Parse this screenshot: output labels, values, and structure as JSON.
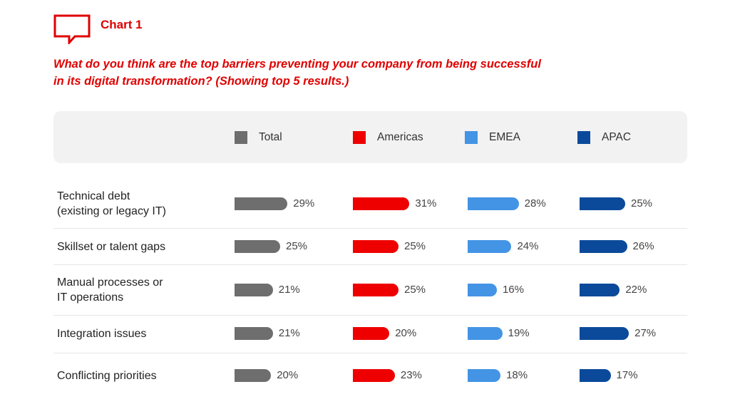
{
  "header": {
    "icon": "speech-bubble-icon",
    "chart_label": "Chart 1",
    "question": "What do you think are the top barriers preventing your company from being successful in its digital transformation? (Showing top 5 results.)"
  },
  "colors": {
    "accent": "#e00000",
    "Total": "#6e6e6e",
    "Americas": "#ee0000",
    "EMEA": "#4394e5",
    "APAC": "#0b4a9a"
  },
  "chart_data": {
    "type": "bar",
    "orientation": "horizontal",
    "title": "What do you think are the top barriers preventing your company from being successful in its digital transformation? (Showing top 5 results.)",
    "legend_position": "top",
    "unit": "%",
    "categories": [
      "Technical debt\n(existing or legacy IT)",
      "Skillset or talent gaps",
      "Manual processes or\nIT operations",
      "Integration issues",
      "Conflicting priorities"
    ],
    "series": [
      {
        "name": "Total",
        "values": [
          29,
          25,
          21,
          21,
          20
        ],
        "labels": [
          "29%",
          "25%",
          "21%",
          "21%",
          "20%"
        ]
      },
      {
        "name": "Americas",
        "values": [
          31,
          25,
          25,
          20,
          23
        ],
        "labels": [
          "31%",
          "25%",
          "25%",
          "20%",
          "23%"
        ]
      },
      {
        "name": "EMEA",
        "values": [
          28,
          24,
          16,
          19,
          18
        ],
        "labels": [
          "28%",
          "24%",
          "16%",
          "19%",
          "18%"
        ]
      },
      {
        "name": "APAC",
        "values": [
          25,
          26,
          22,
          27,
          17
        ],
        "labels": [
          "25%",
          "26%",
          "22%",
          "27%",
          "17%"
        ]
      }
    ]
  }
}
